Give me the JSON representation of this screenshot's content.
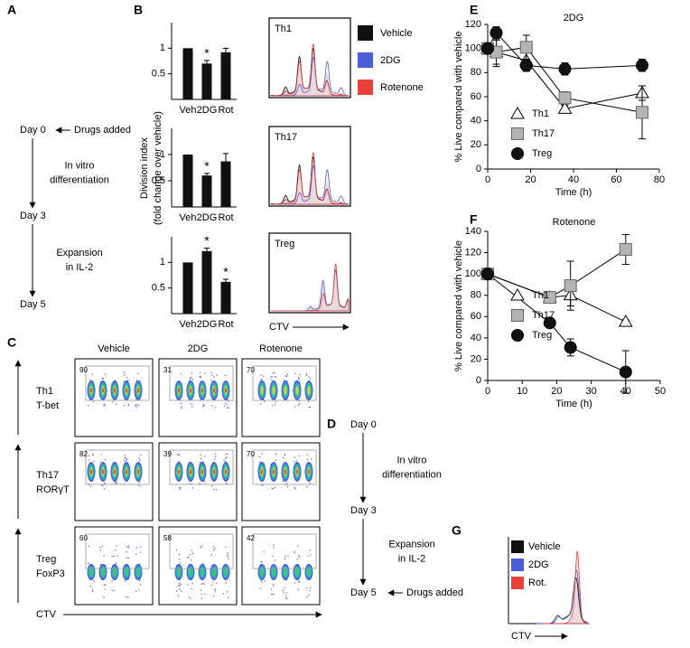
{
  "panel_labels": [
    "A",
    "B",
    "C",
    "D",
    "E",
    "F",
    "G"
  ],
  "schematic_a": {
    "steps": [
      {
        "label": "Day 0",
        "note": "Drugs added"
      },
      {
        "label": "Day 3"
      },
      {
        "label": "Day 5"
      }
    ],
    "transitions": [
      [
        "In vitro",
        "differentiation"
      ],
      [
        "Expansion",
        "in IL-2"
      ]
    ]
  },
  "schematic_d": {
    "steps": [
      {
        "label": "Day 0"
      },
      {
        "label": "Day 3"
      },
      {
        "label": "Day 5",
        "note": "Drugs added"
      }
    ],
    "transitions": [
      [
        "In vitro",
        "differentiation"
      ],
      [
        "Expansion",
        "in IL-2"
      ]
    ]
  },
  "chart_data": [
    {
      "type": "bar",
      "ylabel": [
        "Division index",
        "(fold change over vehicle)"
      ],
      "categories": [
        "Veh",
        "2DG",
        "Rot"
      ],
      "values": [
        1,
        0.7,
        0.92
      ],
      "errors": [
        0,
        0.06,
        0.08
      ],
      "annotations": [
        null,
        "*",
        null
      ],
      "color": "#111111",
      "ylim": [
        0,
        1.5
      ],
      "yticks": [
        0.5,
        1
      ]
    },
    {
      "type": "bar",
      "categories": [
        "Veh",
        "2DG",
        "Rot"
      ],
      "values": [
        1,
        0.6,
        0.87
      ],
      "errors": [
        0,
        0.04,
        0.15
      ],
      "annotations": [
        null,
        "*",
        null
      ],
      "color": "#111111",
      "ylim": [
        0,
        1.5
      ],
      "yticks": [
        0.5,
        1
      ]
    },
    {
      "type": "bar",
      "categories": [
        "Veh",
        "2DG",
        "Rot"
      ],
      "values": [
        1,
        1.22,
        0.62
      ],
      "errors": [
        0,
        0.06,
        0.05
      ],
      "annotations": [
        null,
        "*",
        "*"
      ],
      "color": "#111111",
      "ylim": [
        0,
        1.5
      ],
      "yticks": [
        0.5,
        1
      ]
    },
    {
      "type": "line",
      "title": "2DG",
      "xlabel": "Time (h)",
      "ylabel": "% Live compared with vehicle",
      "x": [
        0,
        4,
        18,
        36,
        72
      ],
      "xlim": [
        0,
        80
      ],
      "xticks": [
        0,
        20,
        40,
        60,
        80
      ],
      "ylim": [
        0,
        120
      ],
      "yticks": [
        0,
        20,
        40,
        60,
        80,
        100,
        120
      ],
      "legend": "lower left",
      "series": [
        {
          "name": "Th1",
          "marker": "triangle",
          "color": "#ffffff",
          "values": [
            100,
            97,
            90,
            50,
            63
          ],
          "errors": [
            0,
            10,
            8,
            3,
            6
          ]
        },
        {
          "name": "Th17",
          "marker": "square",
          "color": "#b3b3b3",
          "values": [
            100,
            97,
            101,
            59,
            47
          ],
          "errors": [
            0,
            12,
            10,
            5,
            22
          ]
        },
        {
          "name": "Treg",
          "marker": "circle",
          "color": "#111111",
          "values": [
            100,
            113,
            86,
            83,
            86
          ],
          "errors": [
            0,
            5,
            5,
            5,
            5
          ]
        }
      ]
    },
    {
      "type": "line",
      "title": "Rotenone",
      "xlabel": "Time (h)",
      "ylabel": "% Live compared with vehicle",
      "x": [
        0,
        18,
        24,
        40
      ],
      "xlim": [
        0,
        50
      ],
      "xticks": [
        0,
        10,
        20,
        30,
        40,
        50
      ],
      "ylim": [
        0,
        140
      ],
      "yticks": [
        0,
        20,
        40,
        60,
        80,
        100,
        120,
        140
      ],
      "legend": "lower left",
      "series": [
        {
          "name": "Th1",
          "marker": "triangle",
          "color": "#ffffff",
          "values": [
            100,
            78,
            80,
            55
          ],
          "errors": [
            0,
            3,
            10,
            2
          ]
        },
        {
          "name": "Th17",
          "marker": "square",
          "color": "#b3b3b3",
          "values": [
            100,
            78,
            89,
            123
          ],
          "errors": [
            0,
            5,
            23,
            14
          ]
        },
        {
          "name": "Treg",
          "marker": "circle",
          "color": "#111111",
          "values": [
            100,
            54,
            31,
            8
          ],
          "errors": [
            0,
            4,
            8,
            20
          ]
        }
      ]
    }
  ],
  "histograms_b": {
    "labels": [
      "Th1",
      "Th17",
      "Treg"
    ],
    "xlabel": "CTV",
    "legend": [
      {
        "name": "Vehicle",
        "color": "#111111"
      },
      {
        "name": "2DG",
        "color": "#4a5fd6"
      },
      {
        "name": "Rotenone",
        "color": "#e8413c"
      }
    ]
  },
  "histogram_g": {
    "xlabel": "CTV",
    "legend": [
      {
        "name": "Vehicle",
        "color": "#111111"
      },
      {
        "name": "2DG",
        "color": "#4a5fd6"
      },
      {
        "name": "Rot.",
        "color": "#e8413c"
      }
    ]
  },
  "flow": {
    "columns": [
      "Vehicle",
      "2DG",
      "Rotenone"
    ],
    "xlabel": "CTV",
    "rows": [
      {
        "name": "Th1",
        "marker": "T-bet",
        "gates": [
          "90",
          "31",
          "70"
        ]
      },
      {
        "name": "Th17",
        "marker": "RORγT",
        "gates": [
          "82",
          "39",
          "70"
        ]
      },
      {
        "name": "Treg",
        "marker": "FoxP3",
        "gates": [
          "60",
          "58",
          "42"
        ]
      }
    ]
  }
}
